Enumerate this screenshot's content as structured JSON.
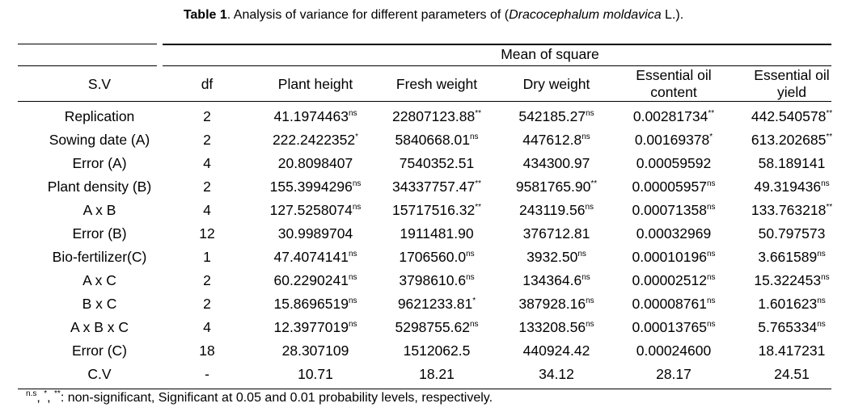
{
  "title": {
    "label": "Table 1",
    "text": ". Analysis of variance for different parameters of (",
    "species": "Dracocephalum moldavica",
    "suffix": " L.)."
  },
  "group_header": "Mean of square",
  "columns": [
    "S.V",
    "df",
    "Plant height",
    "Fresh weight",
    "Dry weight",
    "Essential oil content",
    "Essential oil yield"
  ],
  "columns_split": {
    "c5a": "Essential oil",
    "c5b": "content",
    "c6a": "Essential oil",
    "c6b": "yield"
  },
  "rows": [
    {
      "sv": "Replication",
      "df": "2",
      "cells": [
        [
          "41.1974463",
          "ns"
        ],
        [
          "22807123.88",
          "**"
        ],
        [
          "542185.27",
          "ns"
        ],
        [
          "0.00281734",
          "**"
        ],
        [
          "442.540578",
          "**"
        ]
      ]
    },
    {
      "sv": "Sowing date (A)",
      "df": "2",
      "cells": [
        [
          "222.2422352",
          "*"
        ],
        [
          "5840668.01",
          "ns"
        ],
        [
          "447612.8",
          "ns"
        ],
        [
          "0.00169378",
          "*"
        ],
        [
          "613.202685",
          "**"
        ]
      ]
    },
    {
      "sv": "Error (A)",
      "df": "4",
      "cells": [
        [
          "20.8098407",
          ""
        ],
        [
          "7540352.51",
          ""
        ],
        [
          "434300.97",
          ""
        ],
        [
          "0.00059592",
          ""
        ],
        [
          "58.189141",
          ""
        ]
      ]
    },
    {
      "sv": "Plant density (B)",
      "df": "2",
      "cells": [
        [
          "155.3994296",
          "ns"
        ],
        [
          "34337757.47",
          "**"
        ],
        [
          "9581765.90",
          "**"
        ],
        [
          "0.00005957",
          "ns"
        ],
        [
          "49.319436",
          "ns"
        ]
      ]
    },
    {
      "sv": "A x B",
      "df": "4",
      "cells": [
        [
          "127.5258074",
          "ns"
        ],
        [
          "15717516.32",
          "**"
        ],
        [
          "243119.56",
          "ns"
        ],
        [
          "0.00071358",
          "ns"
        ],
        [
          "133.763218",
          "**"
        ]
      ]
    },
    {
      "sv": "Error (B)",
      "df": "12",
      "cells": [
        [
          "30.9989704",
          ""
        ],
        [
          "1911481.90",
          ""
        ],
        [
          "376712.81",
          ""
        ],
        [
          "0.00032969",
          ""
        ],
        [
          "50.797573",
          ""
        ]
      ]
    },
    {
      "sv": "Bio-fertilizer(C)",
      "df": "1",
      "cells": [
        [
          "47.4074141",
          "ns"
        ],
        [
          "1706560.0",
          "ns"
        ],
        [
          "3932.50",
          "ns"
        ],
        [
          "0.00010196",
          "ns"
        ],
        [
          "3.661589",
          "ns"
        ]
      ]
    },
    {
      "sv": "A x C",
      "df": "2",
      "cells": [
        [
          "60.2290241",
          "ns"
        ],
        [
          "3798610.6",
          "ns"
        ],
        [
          "134364.6",
          "ns"
        ],
        [
          "0.00002512",
          "ns"
        ],
        [
          "15.322453",
          "ns"
        ]
      ]
    },
    {
      "sv": "B x C",
      "df": "2",
      "cells": [
        [
          "15.8696519",
          "ns"
        ],
        [
          "9621233.81",
          "*"
        ],
        [
          "387928.16",
          "ns"
        ],
        [
          "0.00008761",
          "ns"
        ],
        [
          "1.601623",
          "ns"
        ]
      ]
    },
    {
      "sv": "A x B x C",
      "df": "4",
      "cells": [
        [
          "12.3977019",
          "ns"
        ],
        [
          "5298755.62",
          "ns"
        ],
        [
          "133208.56",
          "ns"
        ],
        [
          "0.00013765",
          "ns"
        ],
        [
          "5.765334",
          "ns"
        ]
      ]
    },
    {
      "sv": "Error (C)",
      "df": "18",
      "cells": [
        [
          "28.307109",
          ""
        ],
        [
          "1512062.5",
          ""
        ],
        [
          "440924.42",
          ""
        ],
        [
          "0.00024600",
          ""
        ],
        [
          "18.417231",
          ""
        ]
      ]
    },
    {
      "sv": "C.V",
      "df": "-",
      "cells": [
        [
          "10.71",
          ""
        ],
        [
          "18.21",
          ""
        ],
        [
          "34.12",
          ""
        ],
        [
          "28.17",
          ""
        ],
        [
          "24.51",
          ""
        ]
      ]
    }
  ],
  "footnote": {
    "marks": "n.s , * , **",
    "m1": "n.s",
    "m2": "*",
    "m3": "**",
    "text": ": non-significant, Significant at 0.05 and 0.01 probability levels, respectively."
  }
}
